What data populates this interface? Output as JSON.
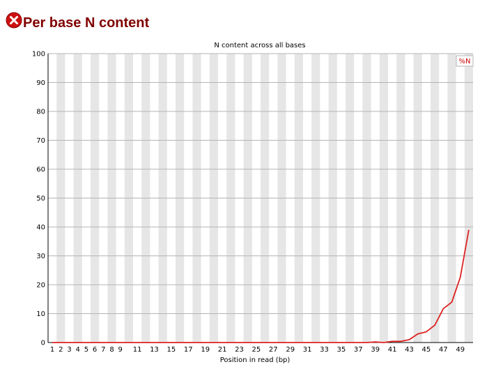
{
  "header": {
    "title": "Per base N content",
    "status_icon": "error-icon",
    "status_color": "#cc0000"
  },
  "chart_data": {
    "type": "line",
    "title": "N content across all bases",
    "xlabel": "Position in read (bp)",
    "ylabel": "",
    "ylim": [
      0,
      100
    ],
    "yticks": [
      0,
      10,
      20,
      30,
      40,
      50,
      60,
      70,
      80,
      90,
      100
    ],
    "categories": [
      "1",
      "2",
      "3",
      "4",
      "5",
      "6",
      "7",
      "8",
      "9",
      "10",
      "11",
      "12",
      "13",
      "14",
      "15",
      "16",
      "17",
      "18",
      "19",
      "20",
      "21",
      "22",
      "23",
      "24",
      "25",
      "26",
      "27",
      "28",
      "29",
      "30",
      "31",
      "32",
      "33",
      "34",
      "35",
      "36",
      "37",
      "38",
      "39",
      "40",
      "41",
      "42",
      "43",
      "44",
      "45",
      "46",
      "47",
      "48",
      "49",
      "50"
    ],
    "xtick_labels": [
      "1",
      "2",
      "3",
      "4",
      "5",
      "6",
      "7",
      "8",
      "9",
      "",
      "11",
      "",
      "13",
      "",
      "15",
      "",
      "17",
      "",
      "19",
      "",
      "21",
      "",
      "23",
      "",
      "25",
      "",
      "27",
      "",
      "29",
      "",
      "31",
      "",
      "33",
      "",
      "35",
      "",
      "37",
      "",
      "39",
      "",
      "41",
      "",
      "43",
      "",
      "45",
      "",
      "47",
      "",
      "49",
      ""
    ],
    "grid": true,
    "legend": "top-right",
    "series": [
      {
        "name": "%N",
        "color": "#dd2222",
        "values": [
          0,
          0,
          0,
          0,
          0,
          0,
          0,
          0,
          0,
          0,
          0,
          0,
          0,
          0,
          0,
          0,
          0,
          0,
          0,
          0,
          0,
          0,
          0,
          0,
          0,
          0,
          0,
          0,
          0,
          0,
          0,
          0,
          0,
          0,
          0,
          0,
          0,
          0,
          0.2,
          0,
          0.4,
          0.4,
          1,
          3,
          3.7,
          6,
          11.7,
          14,
          22.6,
          39
        ]
      }
    ]
  }
}
